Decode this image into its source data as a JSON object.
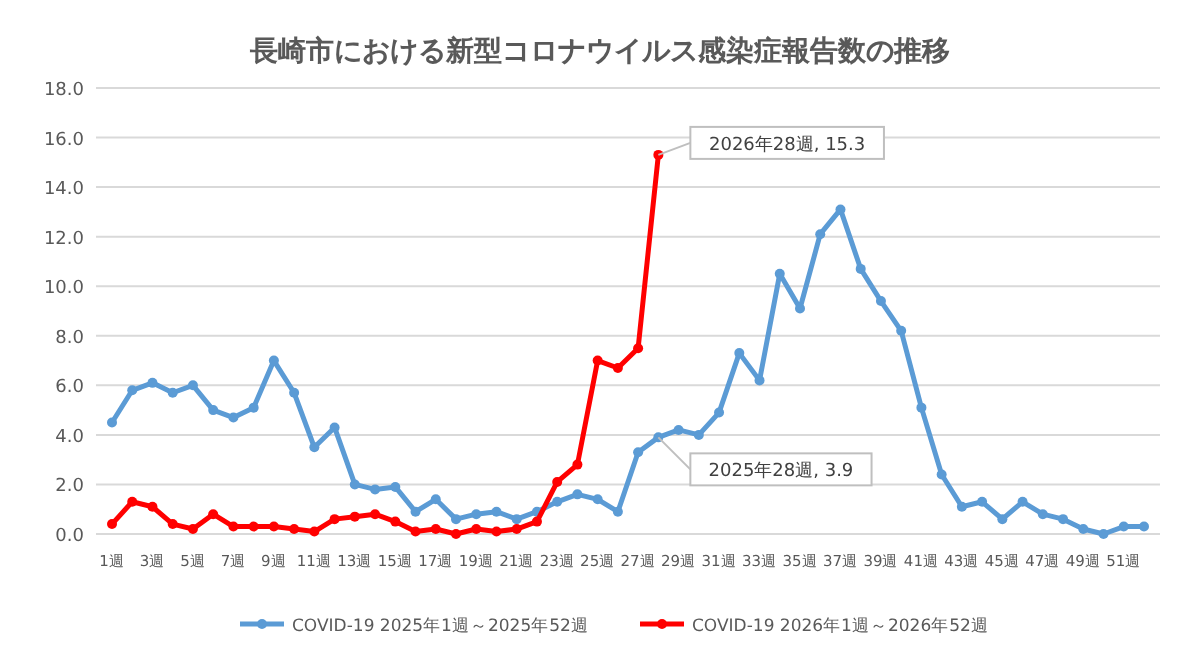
{
  "chart_data": {
    "type": "line",
    "title": "長崎市における新型コロナウイルス感染症報告数の推移",
    "categories": [
      "1週",
      null,
      "3週",
      null,
      "5週",
      null,
      "7週",
      null,
      "9週",
      null,
      "11週",
      null,
      "13週",
      null,
      "15週",
      null,
      "17週",
      null,
      "19週",
      null,
      "21週",
      null,
      "23週",
      null,
      "25週",
      null,
      "27週",
      null,
      "29週",
      null,
      "31週",
      null,
      "33週",
      null,
      "35週",
      null,
      "37週",
      null,
      "39週",
      null,
      "41週",
      null,
      "43週",
      null,
      "45週",
      null,
      "47週",
      null,
      "49週",
      null,
      "51週",
      null
    ],
    "series": [
      {
        "name": "COVID-19 2025年1週～2025年52週",
        "color": "#5b9bd5",
        "values": [
          4.5,
          5.8,
          6.1,
          5.7,
          6.0,
          5.0,
          4.7,
          5.1,
          7.0,
          5.7,
          3.5,
          4.3,
          2.0,
          1.8,
          1.9,
          0.9,
          1.4,
          0.6,
          0.8,
          0.9,
          0.6,
          0.9,
          1.3,
          1.6,
          1.4,
          0.9,
          3.3,
          3.9,
          4.2,
          4.0,
          4.9,
          7.3,
          6.2,
          10.5,
          9.1,
          12.1,
          13.1,
          10.7,
          9.4,
          8.2,
          5.1,
          2.4,
          1.1,
          1.3,
          0.6,
          1.3,
          0.8,
          0.6,
          0.2,
          0.0,
          0.3,
          0.3
        ]
      },
      {
        "name": "COVID-19 2026年1週～2026年52週",
        "color": "#ff0000",
        "values": [
          0.4,
          1.3,
          1.1,
          0.4,
          0.2,
          0.8,
          0.3,
          0.3,
          0.3,
          0.2,
          0.1,
          0.6,
          0.7,
          0.8,
          0.5,
          0.1,
          0.2,
          0.0,
          0.2,
          0.1,
          0.2,
          0.5,
          2.1,
          2.8,
          7.0,
          6.7,
          7.5,
          15.3,
          null,
          null,
          null,
          null,
          null,
          null,
          null,
          null,
          null,
          null,
          null,
          null,
          null,
          null,
          null,
          null,
          null,
          null,
          null,
          null,
          null,
          null,
          null,
          null
        ]
      }
    ],
    "annotations": [
      "2026年28週, 15.3",
      "2025年28週, 3.9"
    ],
    "ylim": [
      0,
      18
    ],
    "yticks": [
      {
        "value": 0,
        "label": "0.0"
      },
      {
        "value": 2,
        "label": "2.0"
      },
      {
        "value": 4,
        "label": "4.0"
      },
      {
        "value": 6,
        "label": "6.0"
      },
      {
        "value": 8,
        "label": "8.0"
      },
      {
        "value": 10,
        "label": "10.0"
      },
      {
        "value": 12,
        "label": "12.0"
      },
      {
        "value": 14,
        "label": "14.0"
      },
      {
        "value": 16,
        "label": "16.0"
      },
      {
        "value": 18,
        "label": "18.0"
      }
    ],
    "grid": "y",
    "legend": "bottom",
    "marker": "circle",
    "line_style": "solid"
  }
}
